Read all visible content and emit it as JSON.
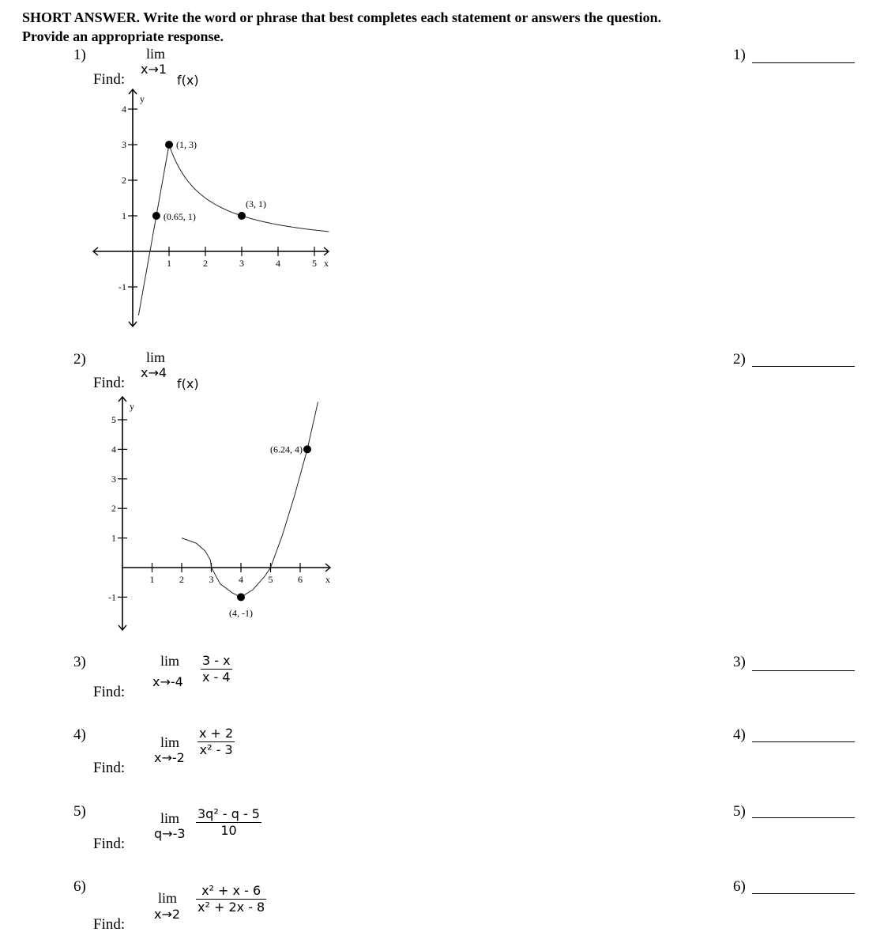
{
  "header": {
    "line1": "SHORT ANSWER.  Write the word or phrase that best completes each statement or answers the question.",
    "line2": "Provide an appropriate response."
  },
  "problems": [
    {
      "number": "1)",
      "find": "Find:",
      "lim": "lim",
      "approach": "x→1",
      "expr": "f(x)",
      "answer_label": "1)"
    },
    {
      "number": "2)",
      "find": "Find:",
      "lim": "lim",
      "approach": "x→4",
      "expr": "f(x)",
      "answer_label": "2)"
    },
    {
      "number": "3)",
      "find": "Find:",
      "lim": "lim",
      "approach": "x→-4",
      "numerator": "3 - x",
      "denominator": "x - 4",
      "answer_label": "3)"
    },
    {
      "number": "4)",
      "find": "Find:",
      "lim": "lim",
      "approach": "x→-2",
      "numerator": "x + 2",
      "denominator": "x² - 3",
      "answer_label": "4)"
    },
    {
      "number": "5)",
      "find": "Find:",
      "lim": "lim",
      "approach": "q→-3",
      "numerator": "3q² - q - 5",
      "denominator": "10",
      "answer_label": "5)"
    },
    {
      "number": "6)",
      "find": "Find:",
      "lim": "lim",
      "approach": "x→2",
      "numerator": "x² + x - 6",
      "denominator": "x² + 2x - 8",
      "answer_label": "6)"
    }
  ],
  "chart_data": [
    {
      "type": "line",
      "xlabel": "x",
      "ylabel": "y",
      "xlim": [
        -1,
        5.5
      ],
      "ylim": [
        -2,
        4.3
      ],
      "xticks": [
        "1",
        "2",
        "3",
        "4",
        "5"
      ],
      "yticks": [
        "-1",
        "1",
        "2",
        "3",
        "4"
      ],
      "segments": [
        [
          [
            0.16,
            -1.8
          ],
          [
            0.65,
            1
          ],
          [
            1,
            3
          ]
        ],
        "y=3/x from x=1 to x=5.4"
      ],
      "points": [
        {
          "x": 1,
          "y": 3,
          "label": "(1, 3)"
        },
        {
          "x": 0.65,
          "y": 1,
          "label": "(0.65, 1)"
        },
        {
          "x": 3,
          "y": 1,
          "label": "(3, 1)"
        }
      ]
    },
    {
      "type": "line",
      "xlabel": "x",
      "ylabel": "y",
      "xlim": [
        0,
        7
      ],
      "ylim": [
        -2,
        5.6
      ],
      "xticks": [
        "1",
        "2",
        "3",
        "4",
        "5",
        "6"
      ],
      "yticks": [
        "-1",
        "1",
        "2",
        "3",
        "4",
        "5"
      ],
      "segments": [
        [
          [
            2,
            1
          ],
          [
            2.5,
            0.82
          ],
          [
            2.8,
            0.55
          ],
          [
            2.97,
            0.25
          ],
          [
            3,
            0
          ],
          [
            3.3,
            -0.55
          ],
          [
            3.7,
            -0.85
          ],
          [
            4,
            -1
          ]
        ],
        [
          [
            4,
            -1
          ],
          [
            4.4,
            -0.75
          ],
          [
            4.8,
            -0.3
          ],
          [
            5,
            0
          ],
          [
            5.4,
            1.1
          ],
          [
            5.8,
            2.4
          ],
          [
            6.24,
            4
          ],
          [
            6.6,
            5.6
          ]
        ]
      ],
      "points": [
        {
          "x": 6.24,
          "y": 4,
          "label": "(6.24, 4)"
        },
        {
          "x": 4,
          "y": -1,
          "label": "(4, -1)"
        }
      ]
    }
  ]
}
